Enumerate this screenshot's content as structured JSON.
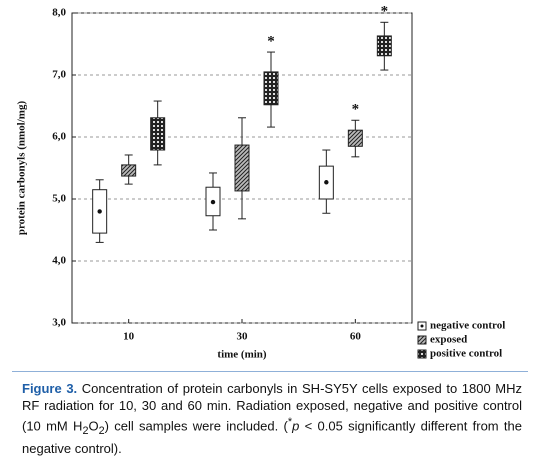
{
  "chart_data": {
    "type": "box",
    "x_label": "time (min)",
    "y_label": "protein carbonyls (nmol/mg)",
    "categories": [
      "10",
      "30",
      "60"
    ],
    "ylim": [
      3,
      8
    ],
    "yticks": [
      {
        "value": 3,
        "label": "3,0"
      },
      {
        "value": 4,
        "label": "4,0"
      },
      {
        "value": 5,
        "label": "5,0"
      },
      {
        "value": 6,
        "label": "6,0"
      },
      {
        "value": 7,
        "label": "7,0"
      },
      {
        "value": 8,
        "label": "8,0"
      }
    ],
    "grid": true,
    "legend": "lower right",
    "series": [
      {
        "name": "negative control",
        "min": [
          4.3,
          4.5,
          4.77
        ],
        "q1": [
          4.45,
          4.73,
          5.0
        ],
        "center": [
          4.8,
          4.95,
          5.27
        ],
        "q3": [
          5.15,
          5.19,
          5.53
        ],
        "max": [
          5.31,
          5.42,
          5.79
        ],
        "significance": [
          null,
          null,
          null
        ]
      },
      {
        "name": "exposed",
        "min": [
          5.24,
          4.68,
          5.68
        ],
        "q1": [
          5.37,
          5.13,
          5.85
        ],
        "center": [
          5.45,
          5.5,
          6.0
        ],
        "q3": [
          5.55,
          5.87,
          6.11
        ],
        "max": [
          5.71,
          6.31,
          6.27
        ],
        "significance": [
          null,
          null,
          "*"
        ]
      },
      {
        "name": "positive control",
        "min": [
          5.55,
          6.16,
          7.08
        ],
        "q1": [
          5.79,
          6.52,
          7.31
        ],
        "center": [
          6.05,
          6.75,
          7.47
        ],
        "q3": [
          6.31,
          7.05,
          7.63
        ],
        "max": [
          6.58,
          7.37,
          7.85
        ],
        "significance": [
          null,
          "*",
          "*"
        ]
      }
    ]
  },
  "caption": {
    "label": "Figure 3.",
    "runs": [
      "Concentration of protein carbonyls in SH-SY5Y cells exposed to 1800 MHz RF radiation for 10, 30 and 60 min. Radiation exposed, negative and positive control (10 mM H",
      "2",
      "O",
      "2",
      ") cell samples were included. (",
      "*",
      "p",
      " < 0.05 significantly different from the negative control)."
    ]
  }
}
